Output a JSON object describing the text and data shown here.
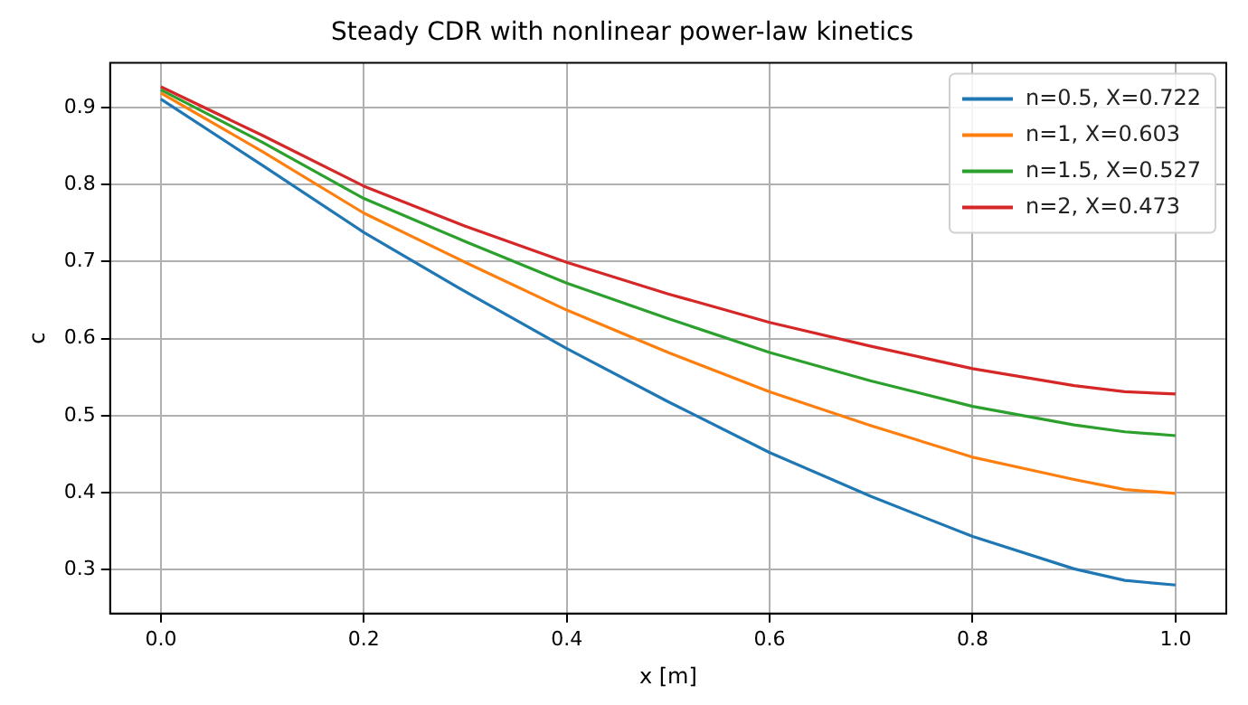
{
  "chart_data": {
    "type": "line",
    "title": "Steady CDR with nonlinear power-law kinetics",
    "xlabel": "x [m]",
    "ylabel": "c",
    "x": [
      0,
      0.1,
      0.2,
      0.3,
      0.4,
      0.5,
      0.6,
      0.7,
      0.8,
      0.9,
      0.95,
      1.0
    ],
    "series": [
      {
        "name": "n=0.5, X=0.722",
        "color": "#1f77b4",
        "values": [
          0.911,
          0.825,
          0.738,
          0.661,
          0.587,
          0.518,
          0.452,
          0.395,
          0.343,
          0.301,
          0.286,
          0.28
        ]
      },
      {
        "name": "n=1, X=0.603",
        "color": "#ff7f0e",
        "values": [
          0.919,
          0.843,
          0.763,
          0.699,
          0.637,
          0.582,
          0.531,
          0.487,
          0.446,
          0.417,
          0.404,
          0.399
        ]
      },
      {
        "name": "n=1.5, X=0.527",
        "color": "#2ca02c",
        "values": [
          0.923,
          0.855,
          0.782,
          0.726,
          0.672,
          0.626,
          0.582,
          0.545,
          0.512,
          0.488,
          0.479,
          0.474
        ]
      },
      {
        "name": "n=2, X=0.473",
        "color": "#d62728",
        "values": [
          0.927,
          0.864,
          0.798,
          0.746,
          0.699,
          0.658,
          0.621,
          0.59,
          0.561,
          0.539,
          0.531,
          0.528
        ]
      }
    ],
    "xlim": [
      -0.05,
      1.05
    ],
    "ylim": [
      0.243,
      0.958
    ],
    "xticks": [
      {
        "value": 0,
        "label": "0.0"
      },
      0.2,
      0.4,
      0.6,
      0.8,
      {
        "value": 1,
        "label": "1.0"
      }
    ],
    "yticks": [
      0.3,
      0.4,
      0.5,
      0.6,
      0.7,
      0.8,
      0.9
    ],
    "grid": true,
    "legend": "top right"
  }
}
